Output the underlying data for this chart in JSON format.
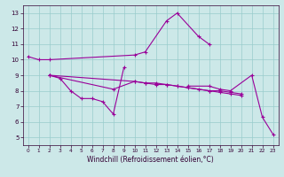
{
  "title": "",
  "xlabel": "Windchill (Refroidissement éolien,°C)",
  "background_color": "#cce8e8",
  "line_color": "#990099",
  "grid_color": "#99cccc",
  "ylim": [
    4.5,
    13.5
  ],
  "xlim": [
    -0.5,
    23.5
  ],
  "yticks": [
    5,
    6,
    7,
    8,
    9,
    10,
    11,
    12,
    13
  ],
  "xticks": [
    0,
    1,
    2,
    3,
    4,
    5,
    6,
    7,
    8,
    9,
    10,
    11,
    12,
    13,
    14,
    15,
    16,
    17,
    18,
    19,
    20,
    21,
    22,
    23
  ],
  "s1_x": [
    0,
    1,
    2,
    10,
    11,
    13,
    14,
    16,
    17
  ],
  "s1_y": [
    10.2,
    10.0,
    10.0,
    10.3,
    10.5,
    12.5,
    13.0,
    11.5,
    11.0
  ],
  "s2a_x": [
    2,
    3,
    4,
    5,
    6,
    7,
    8,
    9
  ],
  "s2a_y": [
    9.0,
    8.8,
    8.0,
    7.5,
    7.5,
    7.3,
    6.5,
    9.5
  ],
  "s2b_x": [
    15,
    17,
    18,
    19,
    21,
    22,
    23
  ],
  "s2b_y": [
    8.3,
    8.3,
    8.1,
    8.0,
    9.0,
    6.3,
    5.2
  ],
  "s3_x": [
    2,
    8,
    10,
    11,
    12,
    13,
    14,
    15,
    16,
    17,
    18,
    19,
    20
  ],
  "s3_y": [
    9.0,
    8.1,
    8.6,
    8.5,
    8.5,
    8.4,
    8.3,
    8.2,
    8.1,
    8.0,
    7.9,
    7.8,
    7.7
  ],
  "s4_x": [
    2,
    10,
    11,
    12,
    13,
    14,
    17,
    18,
    19,
    20
  ],
  "s4_y": [
    9.0,
    8.6,
    8.5,
    8.4,
    8.4,
    8.3,
    8.0,
    8.0,
    7.9,
    7.8
  ],
  "xlabel_fontsize": 5.5,
  "tick_fontsize": 5.0,
  "marker_size": 2.5,
  "line_width": 0.8
}
